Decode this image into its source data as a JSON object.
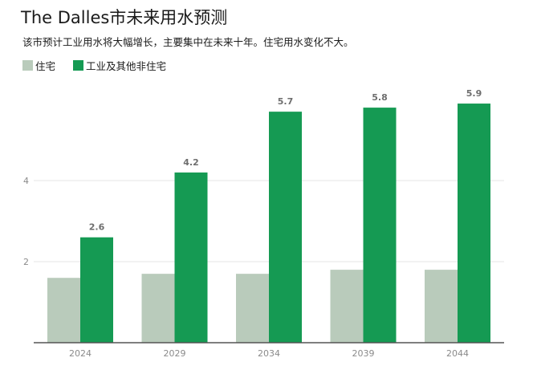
{
  "header": {
    "title": "The Dalles市未来用水预测",
    "subtitle": "该市预计工业用水将大幅增长，主要集中在未来十年。住宅用水变化不大。"
  },
  "colors": {
    "residential": "#b9cbbb",
    "industrial": "#159a53",
    "axis": "#555555",
    "grid": "#e6e6e6"
  },
  "chart_data": {
    "type": "bar",
    "categories": [
      "2024",
      "2029",
      "2034",
      "2039",
      "2044"
    ],
    "series": [
      {
        "name": "住宅",
        "values": [
          1.6,
          1.7,
          1.7,
          1.8,
          1.8
        ],
        "color": "#b9cbbb",
        "show_labels": false
      },
      {
        "name": "工业及其他非住宅",
        "values": [
          2.6,
          4.2,
          5.7,
          5.8,
          5.9
        ],
        "color": "#159a53",
        "show_labels": true
      }
    ],
    "data_labels": [
      "2.6",
      "4.2",
      "5.7",
      "5.8",
      "5.9"
    ],
    "yticks": [
      2,
      4
    ],
    "ylim": [
      0,
      6.5
    ],
    "grid": true,
    "legend_position": "top-left"
  }
}
